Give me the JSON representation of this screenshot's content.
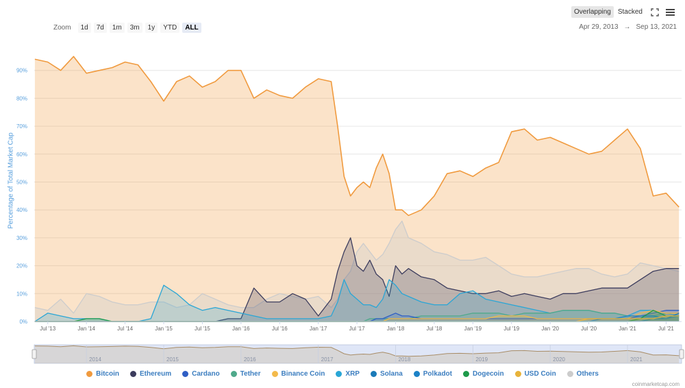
{
  "toolbar": {
    "zoom_label": "Zoom",
    "zoom_buttons": [
      "1d",
      "7d",
      "1m",
      "3m",
      "1y",
      "YTD",
      "ALL"
    ],
    "active_zoom": "ALL",
    "modes": [
      "Overlapping",
      "Stacked"
    ],
    "active_mode": "Overlapping",
    "range_from": "Apr 29, 2013",
    "range_arrow": "→",
    "range_to": "Sep 13, 2021"
  },
  "credits": "coinmarketcap.com",
  "colors": {
    "bitcoin": "#f09a3e",
    "ethereum": "#3c3c5d",
    "cardano": "#2f5ec4",
    "tether": "#4fa98b",
    "binance": "#f3ba4b",
    "xrp": "#29a6d6",
    "solana": "#1a7ab8",
    "polkadot": "#1c82c7",
    "dogecoin": "#1e9a4a",
    "usdc": "#e8b33a",
    "others": "#cccccc"
  },
  "chart_data": {
    "type": "area",
    "ylabel": "Percentage of Total Market Cap",
    "ylim": [
      0,
      100
    ],
    "y_ticks": [
      "0%",
      "10%",
      "20%",
      "30%",
      "40%",
      "50%",
      "60%",
      "70%",
      "80%",
      "90%"
    ],
    "x_ticks": [
      "Jul '13",
      "Jan '14",
      "Jul '14",
      "Jan '15",
      "Jul '15",
      "Jan '16",
      "Jul '16",
      "Jan '17",
      "Jul '17",
      "Jan '18",
      "Jul '18",
      "Jan '19",
      "Jul '19",
      "Jan '20",
      "Jul '20",
      "Jan '21",
      "Jul '21"
    ],
    "navigator_ticks": [
      "2014",
      "2015",
      "2016",
      "2017",
      "2018",
      "2019",
      "2020",
      "2021"
    ],
    "grid": true,
    "legend_position": "bottom",
    "x": [
      "2013-05",
      "2013-07",
      "2013-09",
      "2013-11",
      "2014-01",
      "2014-03",
      "2014-05",
      "2014-07",
      "2014-09",
      "2014-11",
      "2015-01",
      "2015-03",
      "2015-05",
      "2015-07",
      "2015-09",
      "2015-11",
      "2016-01",
      "2016-03",
      "2016-05",
      "2016-07",
      "2016-09",
      "2016-11",
      "2017-01",
      "2017-03",
      "2017-04",
      "2017-05",
      "2017-06",
      "2017-07",
      "2017-08",
      "2017-09",
      "2017-10",
      "2017-11",
      "2017-12",
      "2018-01",
      "2018-02",
      "2018-03",
      "2018-05",
      "2018-07",
      "2018-09",
      "2018-11",
      "2019-01",
      "2019-03",
      "2019-05",
      "2019-07",
      "2019-09",
      "2019-11",
      "2020-01",
      "2020-03",
      "2020-05",
      "2020-07",
      "2020-09",
      "2020-11",
      "2021-01",
      "2021-03",
      "2021-05",
      "2021-07",
      "2021-09"
    ],
    "series": [
      {
        "name": "Bitcoin",
        "key": "bitcoin",
        "values": [
          94,
          93,
          90,
          95,
          89,
          90,
          91,
          93,
          92,
          86,
          79,
          86,
          88,
          84,
          86,
          90,
          90,
          80,
          83,
          81,
          80,
          84,
          87,
          86,
          70,
          52,
          45,
          48,
          50,
          48,
          55,
          60,
          53,
          40,
          40,
          38,
          40,
          45,
          53,
          54,
          52,
          55,
          57,
          68,
          69,
          65,
          66,
          64,
          62,
          60,
          61,
          65,
          69,
          62,
          45,
          46,
          41
        ]
      },
      {
        "name": "Ethereum",
        "key": "ethereum",
        "values": [
          0,
          0,
          0,
          0,
          0,
          0,
          0,
          0,
          0,
          0,
          0,
          0,
          0,
          0,
          0,
          1,
          1,
          12,
          7,
          7,
          10,
          8,
          2,
          8,
          18,
          25,
          30,
          20,
          18,
          22,
          17,
          15,
          9,
          20,
          17,
          19,
          16,
          15,
          12,
          11,
          10,
          10,
          11,
          9,
          10,
          9,
          8,
          10,
          10,
          11,
          12,
          12,
          12,
          15,
          18,
          19,
          19
        ]
      },
      {
        "name": "Cardano",
        "key": "cardano",
        "values": [
          0,
          0,
          0,
          0,
          0,
          0,
          0,
          0,
          0,
          0,
          0,
          0,
          0,
          0,
          0,
          0,
          0,
          0,
          0,
          0,
          0,
          0,
          0,
          0,
          0,
          0,
          0,
          0,
          0,
          0,
          1,
          1,
          2,
          3,
          2,
          2,
          1,
          1,
          1,
          1,
          1,
          1,
          1,
          1,
          1,
          1,
          1,
          1,
          1,
          1,
          1,
          1,
          1,
          2,
          3,
          4,
          4
        ]
      },
      {
        "name": "Tether",
        "key": "tether",
        "values": [
          0,
          0,
          0,
          0,
          0,
          0,
          0,
          0,
          0,
          0,
          0,
          0,
          0,
          0,
          0,
          0,
          0,
          0,
          0,
          0,
          0,
          0,
          0,
          0,
          0,
          0,
          0,
          0,
          0,
          1,
          1,
          1,
          1,
          1,
          1,
          1,
          2,
          2,
          2,
          2,
          3,
          3,
          3,
          2,
          3,
          3,
          3,
          4,
          4,
          4,
          3,
          3,
          2,
          2,
          2,
          3,
          3
        ]
      },
      {
        "name": "Binance Coin",
        "key": "binance",
        "values": [
          0,
          0,
          0,
          0,
          0,
          0,
          0,
          0,
          0,
          0,
          0,
          0,
          0,
          0,
          0,
          0,
          0,
          0,
          0,
          0,
          0,
          0,
          0,
          0,
          0,
          0,
          0,
          0,
          0,
          0,
          0,
          0,
          1,
          1,
          1,
          1,
          1,
          1,
          1,
          1,
          1,
          1,
          2,
          2,
          2,
          1,
          1,
          1,
          1,
          1,
          1,
          1,
          1,
          3,
          4,
          3,
          3
        ]
      },
      {
        "name": "XRP",
        "key": "xrp",
        "values": [
          0,
          3,
          2,
          1,
          1,
          1,
          0,
          0,
          0,
          1,
          13,
          10,
          6,
          4,
          5,
          4,
          3,
          2,
          1,
          1,
          1,
          1,
          1,
          2,
          7,
          15,
          10,
          8,
          6,
          6,
          5,
          8,
          15,
          13,
          10,
          9,
          7,
          6,
          6,
          10,
          11,
          8,
          7,
          6,
          5,
          4,
          3,
          4,
          4,
          4,
          3,
          3,
          2,
          4,
          4,
          3,
          2
        ]
      },
      {
        "name": "Solana",
        "key": "solana",
        "values": [
          0,
          0,
          0,
          0,
          0,
          0,
          0,
          0,
          0,
          0,
          0,
          0,
          0,
          0,
          0,
          0,
          0,
          0,
          0,
          0,
          0,
          0,
          0,
          0,
          0,
          0,
          0,
          0,
          0,
          0,
          0,
          0,
          0,
          0,
          0,
          0,
          0,
          0,
          0,
          0,
          0,
          0,
          0,
          0,
          0,
          0,
          0,
          0,
          0,
          0,
          0,
          0,
          0,
          0,
          1,
          1,
          3
        ]
      },
      {
        "name": "Polkadot",
        "key": "polkadot",
        "values": [
          0,
          0,
          0,
          0,
          0,
          0,
          0,
          0,
          0,
          0,
          0,
          0,
          0,
          0,
          0,
          0,
          0,
          0,
          0,
          0,
          0,
          0,
          0,
          0,
          0,
          0,
          0,
          0,
          0,
          0,
          0,
          0,
          0,
          0,
          0,
          0,
          0,
          0,
          0,
          0,
          0,
          0,
          0,
          0,
          0,
          0,
          0,
          0,
          0,
          0,
          1,
          1,
          2,
          2,
          2,
          1,
          2
        ]
      },
      {
        "name": "Dogecoin",
        "key": "dogecoin",
        "values": [
          0,
          0,
          0,
          0,
          1,
          1,
          0,
          0,
          0,
          0,
          0,
          0,
          0,
          0,
          0,
          0,
          0,
          0,
          0,
          0,
          0,
          0,
          0,
          0,
          0,
          0,
          0,
          0,
          0,
          0,
          0,
          0,
          0,
          0,
          0,
          0,
          0,
          0,
          0,
          0,
          0,
          0,
          0,
          0,
          0,
          0,
          0,
          0,
          0,
          0,
          0,
          0,
          0,
          1,
          4,
          2,
          2
        ]
      },
      {
        "name": "USD Coin",
        "key": "usdc",
        "values": [
          0,
          0,
          0,
          0,
          0,
          0,
          0,
          0,
          0,
          0,
          0,
          0,
          0,
          0,
          0,
          0,
          0,
          0,
          0,
          0,
          0,
          0,
          0,
          0,
          0,
          0,
          0,
          0,
          0,
          0,
          0,
          0,
          0,
          0,
          0,
          0,
          0,
          0,
          0,
          0,
          0,
          0,
          0,
          0,
          0,
          0,
          0,
          0,
          0,
          1,
          1,
          1,
          1,
          1,
          1,
          2,
          2
        ]
      },
      {
        "name": "Others",
        "key": "others",
        "values": [
          5,
          4,
          8,
          3,
          10,
          9,
          7,
          6,
          6,
          7,
          7,
          5,
          6,
          10,
          8,
          6,
          5,
          5,
          8,
          10,
          9,
          8,
          9,
          5,
          8,
          15,
          18,
          25,
          28,
          25,
          22,
          24,
          28,
          33,
          36,
          30,
          28,
          25,
          24,
          22,
          22,
          23,
          20,
          17,
          16,
          16,
          17,
          18,
          19,
          19,
          17,
          16,
          17,
          21,
          20,
          19,
          18
        ]
      }
    ]
  },
  "navigator_series": "Bitcoin"
}
